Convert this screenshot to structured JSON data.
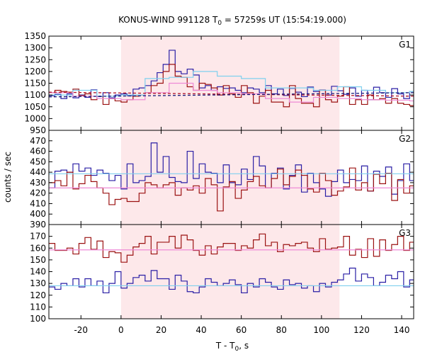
{
  "title": {
    "prefix": "KONUS-WIND 991128 T",
    "subscript": "0",
    "suffix": " = 57259s UT (15:54:19.000)"
  },
  "axes": {
    "xlabel_prefix": "T - T",
    "xlabel_subscript": "0",
    "xlabel_suffix": ", s",
    "ylabel": "counts / sec"
  },
  "chart_data": {
    "type": "line",
    "style": "step histogram, 3 stacked panels sharing x axis",
    "xlim": [
      -36,
      146
    ],
    "xticks": [
      -20,
      0,
      20,
      40,
      60,
      80,
      100,
      120,
      140
    ],
    "highlight_interval": {
      "x": [
        0,
        109
      ],
      "color": "#fde8ea"
    },
    "colors": {
      "dark_blue": "#2a1fa5",
      "dark_red": "#9b1212",
      "light_blue": "#7fd0ee",
      "pink": "#ee8ad6",
      "red_dashed": "#b0152a",
      "navy_dashed": "#1a1a78",
      "highlight": "#fde8ea"
    },
    "panels": [
      {
        "label": "G1",
        "ylim": [
          950,
          1350
        ],
        "yticks": [
          950,
          1000,
          1050,
          1100,
          1150,
          1200,
          1250,
          1300,
          1350
        ],
        "series": [
          {
            "color": "dark_blue",
            "width": 1.2,
            "x0": -36,
            "dx": 3,
            "values": [
              1097,
              1103,
              1085,
              1105,
              1088,
              1100,
              1090,
              1122,
              1093,
              1110,
              1088,
              1100,
              1105,
              1097,
              1125,
              1130,
              1140,
              1160,
              1195,
              1230,
              1290,
              1200,
              1190,
              1210,
              1185,
              1130,
              1140,
              1120,
              1135,
              1128,
              1130,
              1120,
              1110,
              1130,
              1125,
              1110,
              1140,
              1105,
              1125,
              1098,
              1128,
              1112,
              1093,
              1134,
              1115,
              1121,
              1100,
              1137,
              1118,
              1103,
              1130,
              1095,
              1120,
              1080,
              1133,
              1110,
              1090,
              1127,
              1105,
              1085,
              1115,
              1098
            ]
          },
          {
            "color": "dark_red",
            "width": 1.2,
            "x0": -36,
            "dx": 3,
            "values": [
              1110,
              1120,
              1115,
              1112,
              1125,
              1098,
              1105,
              1080,
              1095,
              1060,
              1085,
              1075,
              1070,
              1080,
              1095,
              1100,
              1110,
              1140,
              1150,
              1200,
              1230,
              1180,
              1175,
              1135,
              1120,
              1150,
              1145,
              1130,
              1100,
              1140,
              1105,
              1090,
              1140,
              1110,
              1065,
              1095,
              1120,
              1070,
              1070,
              1050,
              1140,
              1085,
              1065,
              1065,
              1050,
              1120,
              1080,
              1070,
              1095,
              1135,
              1060,
              1080,
              1060,
              1100,
              1080,
              1085,
              1065,
              1085,
              1065,
              1060,
              1055,
              1060
            ]
          },
          {
            "color": "light_blue",
            "width": 1.2,
            "x0": -36,
            "dx": 12,
            "values": [
              1100,
              1120,
              1095,
              1100,
              1170,
              1175,
              1200,
              1180,
              1170,
              1130,
              1130,
              1120,
              1135,
              1120,
              1110,
              1115
            ]
          },
          {
            "color": "pink",
            "width": 1.2,
            "x0": -36,
            "dx": 12,
            "values": [
              1110,
              1095,
              1085,
              1080,
              1110,
              1150,
              1120,
              1110,
              1105,
              1085,
              1070,
              1090,
              1085,
              1080,
              1078,
              1075
            ]
          },
          {
            "name": "red-baseline",
            "color": "red_dashed",
            "dashed": true,
            "width": 1.3,
            "line": [
              [
                -36,
                1112
              ],
              [
                146,
                1095
              ]
            ]
          },
          {
            "name": "navy-baseline",
            "color": "navy_dashed",
            "dashed": true,
            "width": 1.3,
            "line": [
              [
                -36,
                1092
              ],
              [
                146,
                1110
              ]
            ]
          }
        ]
      },
      {
        "label": "G2",
        "ylim": [
          390,
          480
        ],
        "yticks": [
          390,
          400,
          410,
          420,
          430,
          440,
          450,
          460,
          470
        ],
        "series": [
          {
            "color": "dark_blue",
            "width": 1.2,
            "x0": -36,
            "dx": 3,
            "values": [
              425,
              441,
              442,
              440,
              448,
              441,
              444,
              437,
              442,
              439,
              432,
              437,
              424,
              448,
              430,
              432,
              436,
              468,
              440,
              455,
              435,
              431,
              430,
              460,
              434,
              448,
              440,
              439,
              430,
              447,
              430,
              428,
              443,
              433,
              455,
              446,
              425,
              439,
              444,
              424,
              437,
              447,
              421,
              439,
              430,
              424,
              417,
              431,
              442,
              430,
              433,
              432,
              446,
              422,
              441,
              436,
              445,
              419,
              432,
              448,
              432,
              433
            ]
          },
          {
            "color": "dark_red",
            "width": 1.2,
            "x0": -36,
            "dx": 3,
            "values": [
              430,
              432,
              427,
              440,
              424,
              429,
              437,
              431,
              425,
              420,
              409,
              414,
              415,
              412,
              412,
              420,
              430,
              428,
              425,
              428,
              430,
              418,
              425,
              423,
              427,
              420,
              434,
              428,
              403,
              426,
              431,
              415,
              423,
              431,
              436,
              427,
              425,
              434,
              443,
              428,
              436,
              442,
              437,
              424,
              421,
              439,
              432,
              418,
              422,
              426,
              444,
              423,
              430,
              422,
              438,
              429,
              439,
              413,
              433,
              420,
              427,
              419
            ]
          },
          {
            "color": "light_blue",
            "width": 1.2,
            "line": [
              [
                -36,
                438.5
              ],
              [
                146,
                438.5
              ]
            ]
          },
          {
            "color": "pink",
            "width": 1.2,
            "line": [
              [
                -36,
                425
              ],
              [
                146,
                425
              ]
            ]
          }
        ]
      },
      {
        "label": "G3",
        "ylim": [
          100,
          180
        ],
        "yticks": [
          100,
          110,
          120,
          130,
          140,
          150,
          160,
          170
        ],
        "series": [
          {
            "color": "dark_red",
            "width": 1.2,
            "x0": -36,
            "dx": 3,
            "values": [
              164,
              158,
              158,
              160,
              155,
              164,
              169,
              159,
              166,
              152,
              157,
              156,
              148,
              154,
              161,
              164,
              170,
              155,
              165,
              165,
              170,
              160,
              171,
              167,
              158,
              154,
              162,
              155,
              161,
              164,
              164,
              158,
              162,
              160,
              167,
              172,
              162,
              165,
              157,
              163,
              162,
              164,
              165,
              160,
              157,
              168,
              159,
              160,
              161,
              170,
              154,
              159,
              152,
              168,
              153,
              167,
              158,
              163,
              170,
              158,
              165,
              157
            ]
          },
          {
            "color": "dark_blue",
            "width": 1.2,
            "x0": -36,
            "dx": 3,
            "values": [
              127,
              125,
              130,
              128,
              134,
              127,
              134,
              128,
              132,
              122,
              130,
              140,
              126,
              130,
              135,
              137,
              132,
              141,
              134,
              134,
              125,
              137,
              132,
              123,
              122,
              127,
              134,
              131,
              128,
              130,
              133,
              129,
              122,
              130,
              127,
              134,
              131,
              127,
              125,
              133,
              129,
              130,
              126,
              128,
              123,
              130,
              127,
              131,
              133,
              138,
              143,
              132,
              138,
              135,
              128,
              131,
              137,
              134,
              140,
              127,
              133,
              138
            ]
          },
          {
            "color": "pink",
            "width": 1.2,
            "line": [
              [
                -36,
                158.5
              ],
              [
                146,
                158.5
              ]
            ]
          },
          {
            "color": "light_blue",
            "width": 1.2,
            "line": [
              [
                -36,
                128
              ],
              [
                146,
                128
              ]
            ]
          }
        ]
      }
    ]
  }
}
